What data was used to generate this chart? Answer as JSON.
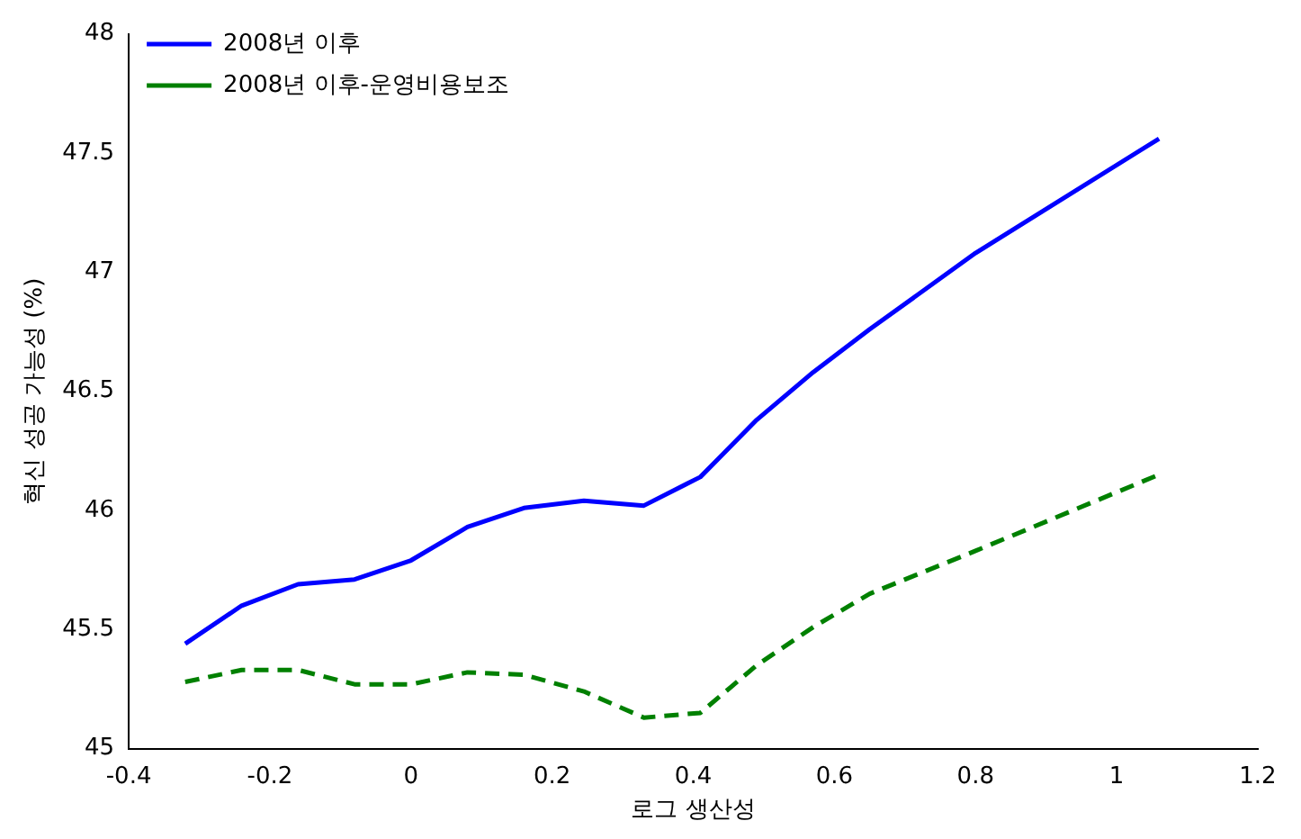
{
  "chart_data": {
    "type": "line",
    "xlabel": "로그 생산성",
    "ylabel": "혁신 성공 가능성 (%)",
    "xlim": [
      -0.4,
      1.2
    ],
    "xticks": [
      -0.4,
      -0.2,
      0,
      0.2,
      0.4,
      0.6,
      0.8,
      1,
      1.2
    ],
    "ylim": [
      45,
      48
    ],
    "yticks": [
      45,
      45.5,
      46,
      46.5,
      47,
      47.5,
      48
    ],
    "grid": false,
    "legend": "top left",
    "marker": "none",
    "x": [
      -0.32,
      -0.24,
      -0.16,
      -0.08,
      0,
      0.08,
      0.16,
      0.245,
      0.33,
      0.41,
      0.49,
      0.57,
      0.65,
      0.8,
      1.06
    ],
    "series": [
      {
        "name": "2008년 이후",
        "color": "#0000ff",
        "line_style": "solid",
        "values": [
          45.44,
          45.6,
          45.69,
          45.71,
          45.79,
          45.93,
          46.01,
          46.04,
          46.02,
          46.14,
          46.38,
          46.58,
          46.76,
          47.08,
          47.56
        ]
      },
      {
        "name": "2008년 이후-운영비용보조",
        "color": "#008000",
        "line_style": "dashed",
        "values": [
          45.28,
          45.33,
          45.33,
          45.27,
          45.27,
          45.32,
          45.31,
          45.24,
          45.13,
          45.15,
          45.35,
          45.51,
          45.65,
          45.83,
          46.15
        ]
      }
    ]
  }
}
